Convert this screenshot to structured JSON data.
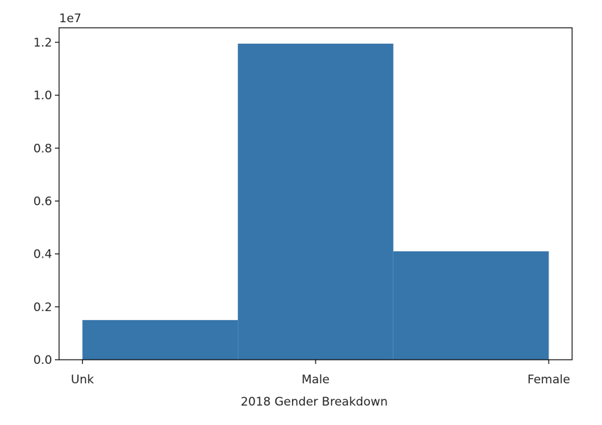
{
  "chart_data": {
    "type": "bar",
    "style": "histogram",
    "categories": [
      "Unk",
      "Male",
      "Female"
    ],
    "bins": [
      {
        "from": 0.0,
        "to": 1.0,
        "value": 1500000
      },
      {
        "from": 1.0,
        "to": 2.0,
        "value": 11950000
      },
      {
        "from": 2.0,
        "to": 3.0,
        "value": 4100000
      }
    ],
    "x_ticks": [
      {
        "value": 0.0,
        "label": "Unk"
      },
      {
        "value": 1.5,
        "label": "Male"
      },
      {
        "value": 3.0,
        "label": "Female"
      }
    ],
    "y_ticks": [
      {
        "value": 0,
        "label": "0.0"
      },
      {
        "value": 2000000,
        "label": "0.2"
      },
      {
        "value": 4000000,
        "label": "0.4"
      },
      {
        "value": 6000000,
        "label": "0.6"
      },
      {
        "value": 8000000,
        "label": "0.8"
      },
      {
        "value": 10000000,
        "label": "1.0"
      },
      {
        "value": 12000000,
        "label": "1.2"
      }
    ],
    "y_offset_label": "1e7",
    "xlabel": "2018 Gender Breakdown",
    "ylabel": "",
    "title": "",
    "xlim": [
      -0.15,
      3.15
    ],
    "ylim": [
      0,
      12550000
    ],
    "grid": false,
    "legend": "none",
    "bar_color": "#3776ab",
    "axis_color": "#000000",
    "text_color": "#262626"
  }
}
